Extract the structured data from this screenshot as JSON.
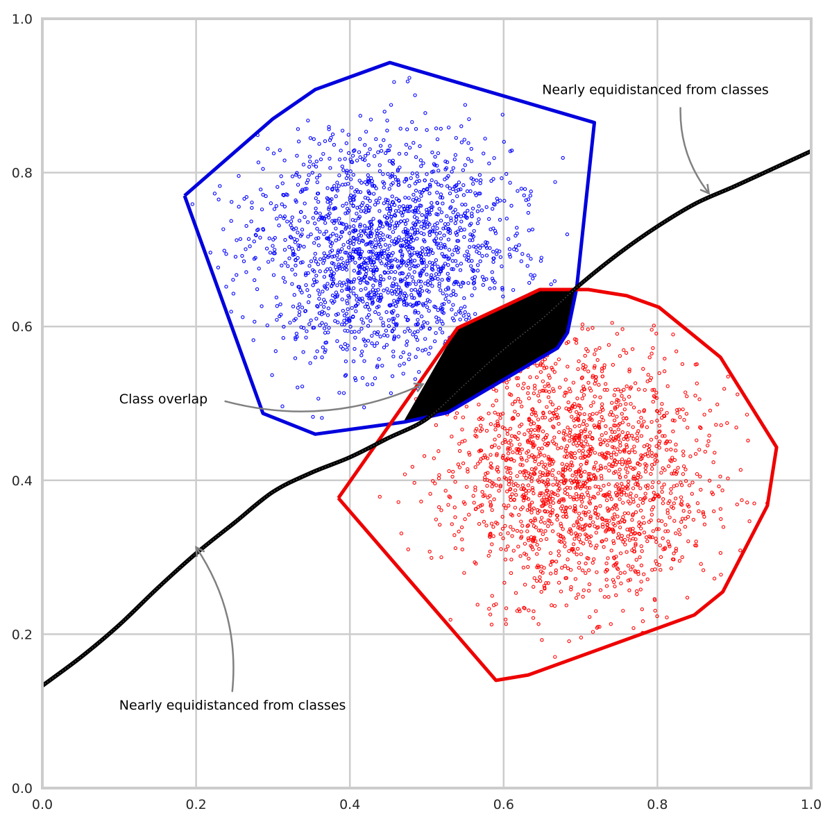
{
  "chart_data": {
    "type": "scatter",
    "title": "",
    "xlabel": "",
    "ylabel": "",
    "xlim": [
      0.0,
      1.0
    ],
    "ylim": [
      0.0,
      1.0
    ],
    "grid": true,
    "xticks": [
      "0.0",
      "0.2",
      "0.4",
      "0.6",
      "0.8",
      "1.0"
    ],
    "yticks": [
      "0.0",
      "0.2",
      "0.4",
      "0.6",
      "0.8",
      "1.0"
    ],
    "clusters": [
      {
        "color": "#0000ff",
        "center": [
          0.45,
          0.7
        ],
        "spread": [
          0.085,
          0.075
        ],
        "count": 1800
      },
      {
        "color": "#ff0000",
        "center": [
          0.7,
          0.41
        ],
        "spread": [
          0.085,
          0.085
        ],
        "count": 1800
      }
    ],
    "hulls": [
      {
        "color": "#0000dd",
        "points": [
          [
            0.185,
            0.77
          ],
          [
            0.3,
            0.87
          ],
          [
            0.355,
            0.908
          ],
          [
            0.452,
            0.943
          ],
          [
            0.718,
            0.865
          ],
          [
            0.695,
            0.65
          ],
          [
            0.683,
            0.592
          ],
          [
            0.67,
            0.572
          ],
          [
            0.527,
            0.488
          ],
          [
            0.472,
            0.476
          ],
          [
            0.355,
            0.46
          ],
          [
            0.287,
            0.487
          ],
          [
            0.185,
            0.77
          ]
        ]
      },
      {
        "color": "#ee0000",
        "points": [
          [
            0.385,
            0.377
          ],
          [
            0.54,
            0.598
          ],
          [
            0.647,
            0.648
          ],
          [
            0.71,
            0.648
          ],
          [
            0.76,
            0.64
          ],
          [
            0.802,
            0.625
          ],
          [
            0.882,
            0.56
          ],
          [
            0.955,
            0.443
          ],
          [
            0.943,
            0.367
          ],
          [
            0.885,
            0.255
          ],
          [
            0.848,
            0.225
          ],
          [
            0.632,
            0.147
          ],
          [
            0.59,
            0.14
          ],
          [
            0.385,
            0.377
          ]
        ]
      }
    ],
    "overlap_region": {
      "color": "#000000",
      "points": [
        [
          0.469,
          0.474
        ],
        [
          0.54,
          0.598
        ],
        [
          0.647,
          0.648
        ],
        [
          0.692,
          0.648
        ],
        [
          0.683,
          0.592
        ],
        [
          0.67,
          0.572
        ],
        [
          0.527,
          0.488
        ],
        [
          0.469,
          0.474
        ]
      ]
    },
    "boundary": {
      "color": "#000000",
      "x": [
        0.0,
        0.05,
        0.1,
        0.15,
        0.2,
        0.25,
        0.3,
        0.35,
        0.4,
        0.45,
        0.5,
        0.55,
        0.6,
        0.65,
        0.7,
        0.75,
        0.8,
        0.85,
        0.9,
        0.95,
        1.0
      ],
      "y": [
        0.133,
        0.17,
        0.212,
        0.26,
        0.305,
        0.345,
        0.385,
        0.41,
        0.43,
        0.455,
        0.48,
        0.525,
        0.57,
        0.61,
        0.655,
        0.695,
        0.73,
        0.76,
        0.782,
        0.805,
        0.828
      ]
    },
    "annotations": [
      {
        "text": "Nearly equidistanced from classes",
        "text_pos": [
          0.65,
          0.902
        ],
        "arrow_from": [
          0.83,
          0.885
        ],
        "arrow_to": [
          0.867,
          0.773
        ]
      },
      {
        "text": "Class overlap",
        "text_pos": [
          0.1,
          0.5
        ],
        "arrow_from": [
          0.237,
          0.503
        ],
        "arrow_to": [
          0.495,
          0.525
        ]
      },
      {
        "text": "Nearly equidistanced from classes",
        "text_pos": [
          0.1,
          0.102
        ],
        "arrow_from": [
          0.247,
          0.125
        ],
        "arrow_to": [
          0.2,
          0.313
        ]
      }
    ]
  }
}
